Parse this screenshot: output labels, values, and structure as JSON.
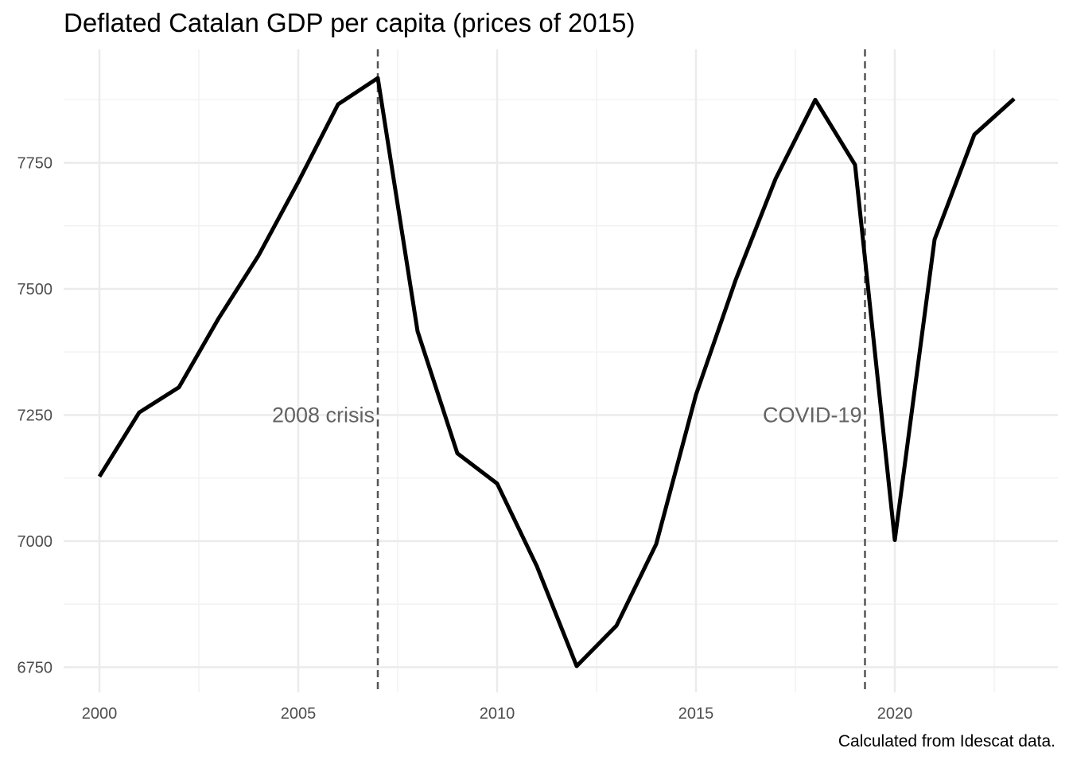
{
  "chart_data": {
    "type": "line",
    "title": "Deflated Catalan GDP per capita (prices of 2015)",
    "caption": "Calculated from Idescat data.",
    "xlabel": "",
    "ylabel": "",
    "xlim": [
      1999.1,
      2024.1
    ],
    "ylim": [
      6700,
      7975
    ],
    "x_ticks": [
      2000,
      2005,
      2010,
      2015,
      2020
    ],
    "y_ticks": [
      6750,
      7000,
      7250,
      7500,
      7750
    ],
    "grid": true,
    "legend": "none",
    "series": [
      {
        "color": "#000000",
        "x": [
          2000,
          2001,
          2002,
          2003,
          2004,
          2005,
          2006,
          2007,
          2008,
          2009,
          2010,
          2011,
          2012,
          2013,
          2014,
          2015,
          2016,
          2017,
          2018,
          2019,
          2020,
          2021,
          2022,
          2023
        ],
        "y": [
          7128,
          7255,
          7305,
          7442,
          7566,
          7712,
          7866,
          7918,
          7416,
          7174,
          7114,
          6950,
          6752,
          6832,
          6994,
          7290,
          7518,
          7718,
          7875,
          7746,
          7002,
          7598,
          7806,
          7877
        ]
      }
    ],
    "vlines": [
      {
        "x": 2007.0,
        "label": "2008 crisis",
        "style": "dashed",
        "color": "#555555"
      },
      {
        "x": 2019.25,
        "label": "COVID-19",
        "style": "dashed",
        "color": "#555555"
      }
    ],
    "annotation_y": 7250
  }
}
